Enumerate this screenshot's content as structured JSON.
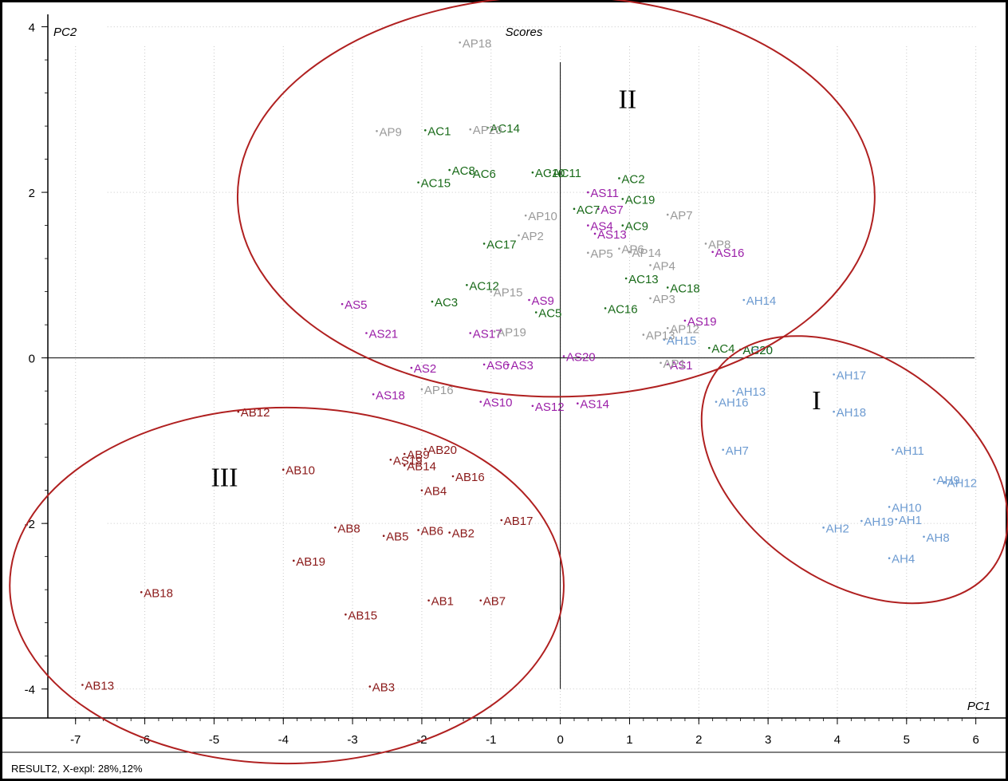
{
  "chart_data": {
    "type": "scatter",
    "title": "Scores",
    "xlabel": "PC1",
    "ylabel": "PC2",
    "xlim": [
      -7.4,
      6.05
    ],
    "ylim": [
      -4.35,
      4.15
    ],
    "xticks": [
      -7,
      -6,
      -5,
      -4,
      -3,
      -2,
      -1,
      0,
      1,
      2,
      3,
      4,
      5,
      6
    ],
    "yticks": [
      -4,
      -2,
      0,
      2,
      4
    ],
    "grid": true,
    "footer": "RESULT2, X-expl: 28%,12%",
    "colors": {
      "AB": "#8b1a1a",
      "AH": "#6d9bd1",
      "AS": "#9b1fa8",
      "AC": "#1a6b1a",
      "AP": "#9a9a9a",
      "ellipse": "#b02020"
    },
    "series": [
      {
        "name": "AB",
        "color": "#8b1a1a",
        "points": [
          {
            "label": "AB1",
            "x": -1.9,
            "y": -2.93
          },
          {
            "label": "AB2",
            "x": -1.6,
            "y": -2.11
          },
          {
            "label": "AB3",
            "x": -2.75,
            "y": -3.97
          },
          {
            "label": "AB4",
            "x": -2.0,
            "y": -1.6
          },
          {
            "label": "AB5",
            "x": -2.55,
            "y": -2.15
          },
          {
            "label": "AB6",
            "x": -2.05,
            "y": -2.08
          },
          {
            "label": "AB7",
            "x": -1.15,
            "y": -2.93
          },
          {
            "label": "AB8",
            "x": -3.25,
            "y": -2.05
          },
          {
            "label": "AB9",
            "x": -2.25,
            "y": -1.16
          },
          {
            "label": "AB10",
            "x": -4.0,
            "y": -1.35
          },
          {
            "label": "AB12",
            "x": -4.65,
            "y": -0.65
          },
          {
            "label": "AB13",
            "x": -6.9,
            "y": -3.95
          },
          {
            "label": "AB14",
            "x": -2.25,
            "y": -1.3
          },
          {
            "label": "AB15",
            "x": -3.1,
            "y": -3.1
          },
          {
            "label": "AB16",
            "x": -1.55,
            "y": -1.43
          },
          {
            "label": "AB17",
            "x": -0.85,
            "y": -1.96
          },
          {
            "label": "AB18",
            "x": -6.05,
            "y": -2.83
          },
          {
            "label": "AB19",
            "x": -3.85,
            "y": -2.45
          },
          {
            "label": "AB20",
            "x": -1.95,
            "y": -1.1
          },
          {
            "label": "AS19",
            "x": -2.45,
            "y": -1.23
          }
        ]
      },
      {
        "name": "AH",
        "color": "#6d9bd1",
        "points": [
          {
            "label": "AH2",
            "x": 3.8,
            "y": -2.05
          },
          {
            "label": "AH4",
            "x": 4.75,
            "y": -2.42
          },
          {
            "label": "AH7",
            "x": 2.35,
            "y": -1.11
          },
          {
            "label": "AH8",
            "x": 5.25,
            "y": -2.16
          },
          {
            "label": "AH9",
            "x": 5.4,
            "y": -1.47
          },
          {
            "label": "AH10",
            "x": 4.75,
            "y": -1.8
          },
          {
            "label": "AH11",
            "x": 4.8,
            "y": -1.11
          },
          {
            "label": "AH12",
            "x": 5.55,
            "y": -1.5
          },
          {
            "label": "AH13",
            "x": 2.5,
            "y": -0.4
          },
          {
            "label": "AH14",
            "x": 2.65,
            "y": 0.7
          },
          {
            "label": "AH15",
            "x": 1.5,
            "y": 0.22
          },
          {
            "label": "AH16",
            "x": 2.25,
            "y": -0.53
          },
          {
            "label": "AH17",
            "x": 3.95,
            "y": -0.2
          },
          {
            "label": "AH18",
            "x": 3.95,
            "y": -0.65
          },
          {
            "label": "AH19",
            "x": 4.35,
            "y": -1.97
          },
          {
            "label": "AH20",
            "x": 2.6,
            "y": 0.1
          },
          {
            "label": "AH1",
            "x": 4.85,
            "y": -1.95
          }
        ]
      },
      {
        "name": "AS",
        "color": "#9b1fa8",
        "points": [
          {
            "label": "AS1",
            "x": 1.55,
            "y": -0.08
          },
          {
            "label": "AS2",
            "x": -2.15,
            "y": -0.12
          },
          {
            "label": "AS3",
            "x": -0.75,
            "y": -0.08
          },
          {
            "label": "AS4",
            "x": 0.4,
            "y": 1.6
          },
          {
            "label": "AS5",
            "x": -3.15,
            "y": 0.65
          },
          {
            "label": "AS6",
            "x": -1.1,
            "y": -0.08
          },
          {
            "label": "AS7",
            "x": 0.55,
            "y": 1.8
          },
          {
            "label": "AS9",
            "x": -0.45,
            "y": 0.7
          },
          {
            "label": "AS10",
            "x": -1.15,
            "y": -0.53
          },
          {
            "label": "AS11",
            "x": 0.4,
            "y": 2.0
          },
          {
            "label": "AS12",
            "x": -0.4,
            "y": -0.58
          },
          {
            "label": "AS13",
            "x": 0.5,
            "y": 1.5
          },
          {
            "label": "AS14",
            "x": 0.25,
            "y": -0.55
          },
          {
            "label": "AS16",
            "x": 2.2,
            "y": 1.28
          },
          {
            "label": "AS17",
            "x": -1.3,
            "y": 0.3
          },
          {
            "label": "AS18",
            "x": -2.7,
            "y": -0.44
          },
          {
            "label": "AS19",
            "x": 1.8,
            "y": 0.45
          },
          {
            "label": "AS20",
            "x": 0.05,
            "y": 0.02
          },
          {
            "label": "AS21",
            "x": -2.8,
            "y": 0.3
          }
        ]
      },
      {
        "name": "AC",
        "color": "#1a6b1a",
        "points": [
          {
            "label": "AC1",
            "x": -1.95,
            "y": 2.75
          },
          {
            "label": "AC2",
            "x": 0.85,
            "y": 2.17
          },
          {
            "label": "AC3",
            "x": -1.85,
            "y": 0.68
          },
          {
            "label": "AC4",
            "x": 2.15,
            "y": 0.12
          },
          {
            "label": "AC5",
            "x": -0.35,
            "y": 0.55
          },
          {
            "label": "AC6",
            "x": -1.3,
            "y": 2.23
          },
          {
            "label": "AC7",
            "x": 0.2,
            "y": 1.8
          },
          {
            "label": "AC8",
            "x": -1.6,
            "y": 2.27
          },
          {
            "label": "AC9",
            "x": 0.9,
            "y": 1.6
          },
          {
            "label": "AC10",
            "x": -0.4,
            "y": 2.24
          },
          {
            "label": "AC11",
            "x": -0.15,
            "y": 2.24
          },
          {
            "label": "AC12",
            "x": -1.35,
            "y": 0.88
          },
          {
            "label": "AC13",
            "x": 0.95,
            "y": 0.96
          },
          {
            "label": "AC14",
            "x": -1.05,
            "y": 2.78
          },
          {
            "label": "AC15",
            "x": -2.05,
            "y": 2.12
          },
          {
            "label": "AC16",
            "x": 0.65,
            "y": 0.6
          },
          {
            "label": "AC17",
            "x": -1.1,
            "y": 1.38
          },
          {
            "label": "AC18",
            "x": 1.55,
            "y": 0.85
          },
          {
            "label": "AC19",
            "x": 0.9,
            "y": 1.92
          },
          {
            "label": "AC20",
            "x": 2.6,
            "y": 0.1
          }
        ]
      },
      {
        "name": "AP",
        "color": "#9a9a9a",
        "points": [
          {
            "label": "AP1",
            "x": 1.45,
            "y": -0.06
          },
          {
            "label": "AP2",
            "x": -0.6,
            "y": 1.48
          },
          {
            "label": "AP3",
            "x": 1.3,
            "y": 0.72
          },
          {
            "label": "AP4",
            "x": 1.3,
            "y": 1.12
          },
          {
            "label": "AP5",
            "x": 0.4,
            "y": 1.27
          },
          {
            "label": "AP6",
            "x": 0.85,
            "y": 1.32
          },
          {
            "label": "AP7",
            "x": 1.55,
            "y": 1.73
          },
          {
            "label": "AP8",
            "x": 2.1,
            "y": 1.38
          },
          {
            "label": "AP9",
            "x": -2.65,
            "y": 2.74
          },
          {
            "label": "AP10",
            "x": -0.5,
            "y": 1.72
          },
          {
            "label": "AP12",
            "x": 1.55,
            "y": 0.36
          },
          {
            "label": "AP13",
            "x": 1.2,
            "y": 0.28
          },
          {
            "label": "AP14",
            "x": 1.0,
            "y": 1.28
          },
          {
            "label": "AP15",
            "x": -1.0,
            "y": 0.8
          },
          {
            "label": "AP16",
            "x": -2.0,
            "y": -0.38
          },
          {
            "label": "AP18",
            "x": -1.45,
            "y": 3.81
          },
          {
            "label": "AP19",
            "x": -0.95,
            "y": 0.32
          },
          {
            "label": "AP20",
            "x": -1.3,
            "y": 2.76
          }
        ]
      }
    ],
    "clusters": [
      {
        "label": "I",
        "cx": 4.25,
        "cy": -1.35,
        "rx": 2.45,
        "ry": 1.35,
        "rotation": 35
      },
      {
        "label": "II",
        "cx": -0.06,
        "cy": 1.95,
        "rx": 4.6,
        "ry": 2.42,
        "rotation": 0
      },
      {
        "label": "III",
        "cx": -3.95,
        "cy": -2.75,
        "rx": 4.0,
        "ry": 2.15,
        "rotation": 0
      }
    ],
    "cluster_label_positions": [
      {
        "label": "I",
        "x": 3.7,
        "y": -0.62
      },
      {
        "label": "II",
        "x": 0.97,
        "y": 3.02
      },
      {
        "label": "III",
        "x": -4.85,
        "y": -1.55
      }
    ]
  }
}
